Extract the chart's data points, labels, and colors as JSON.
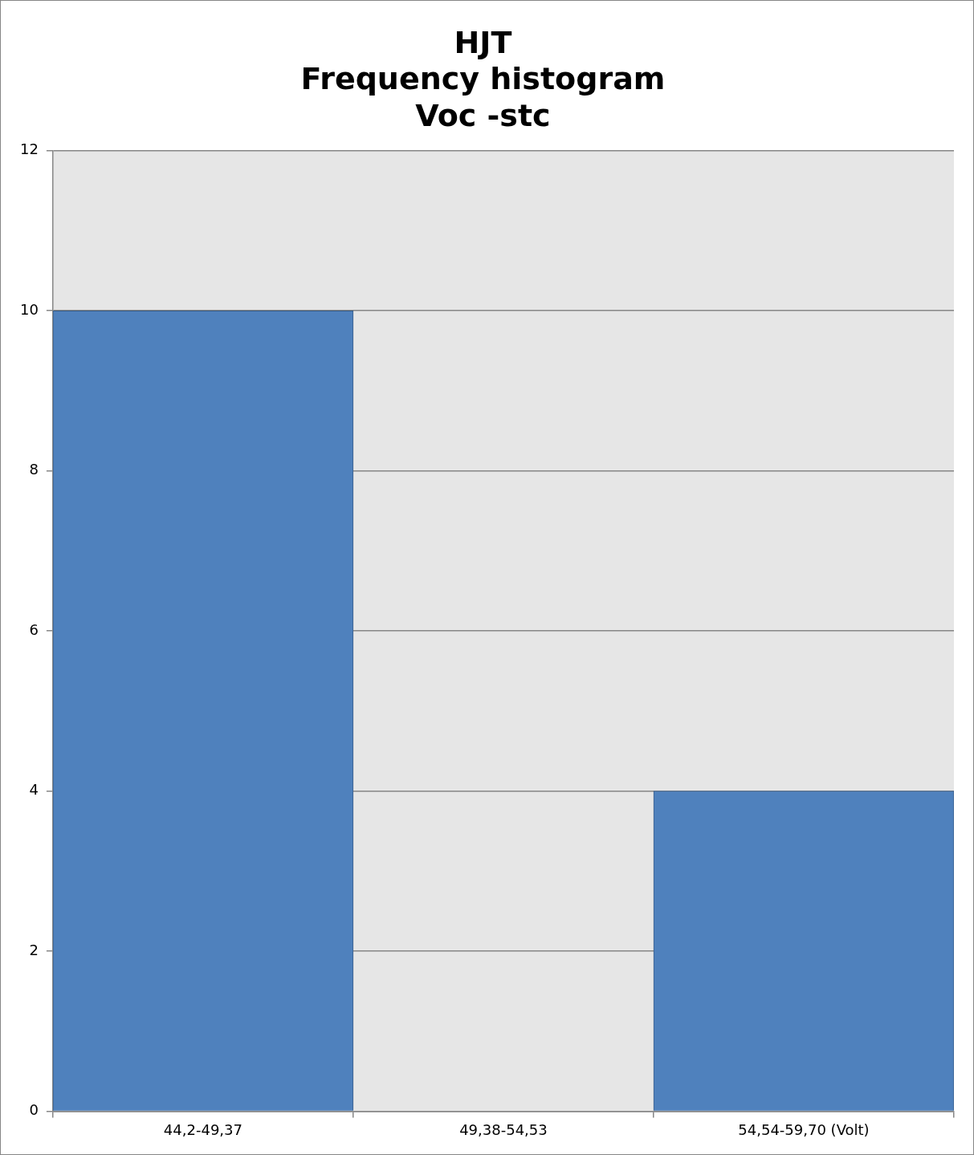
{
  "chart_data": {
    "type": "bar",
    "title": "HJT\nFrequency histogram\nVoc -stc",
    "categories": [
      "44,2-49,37",
      "49,38-54,53",
      "54,54-59,70 (Volt)"
    ],
    "values": [
      10,
      0,
      4
    ],
    "color": "#4f81bd",
    "ylim": [
      0,
      12
    ],
    "yticks": [
      0,
      2,
      4,
      6,
      8,
      10,
      12
    ],
    "grid": "y",
    "legend": false
  }
}
